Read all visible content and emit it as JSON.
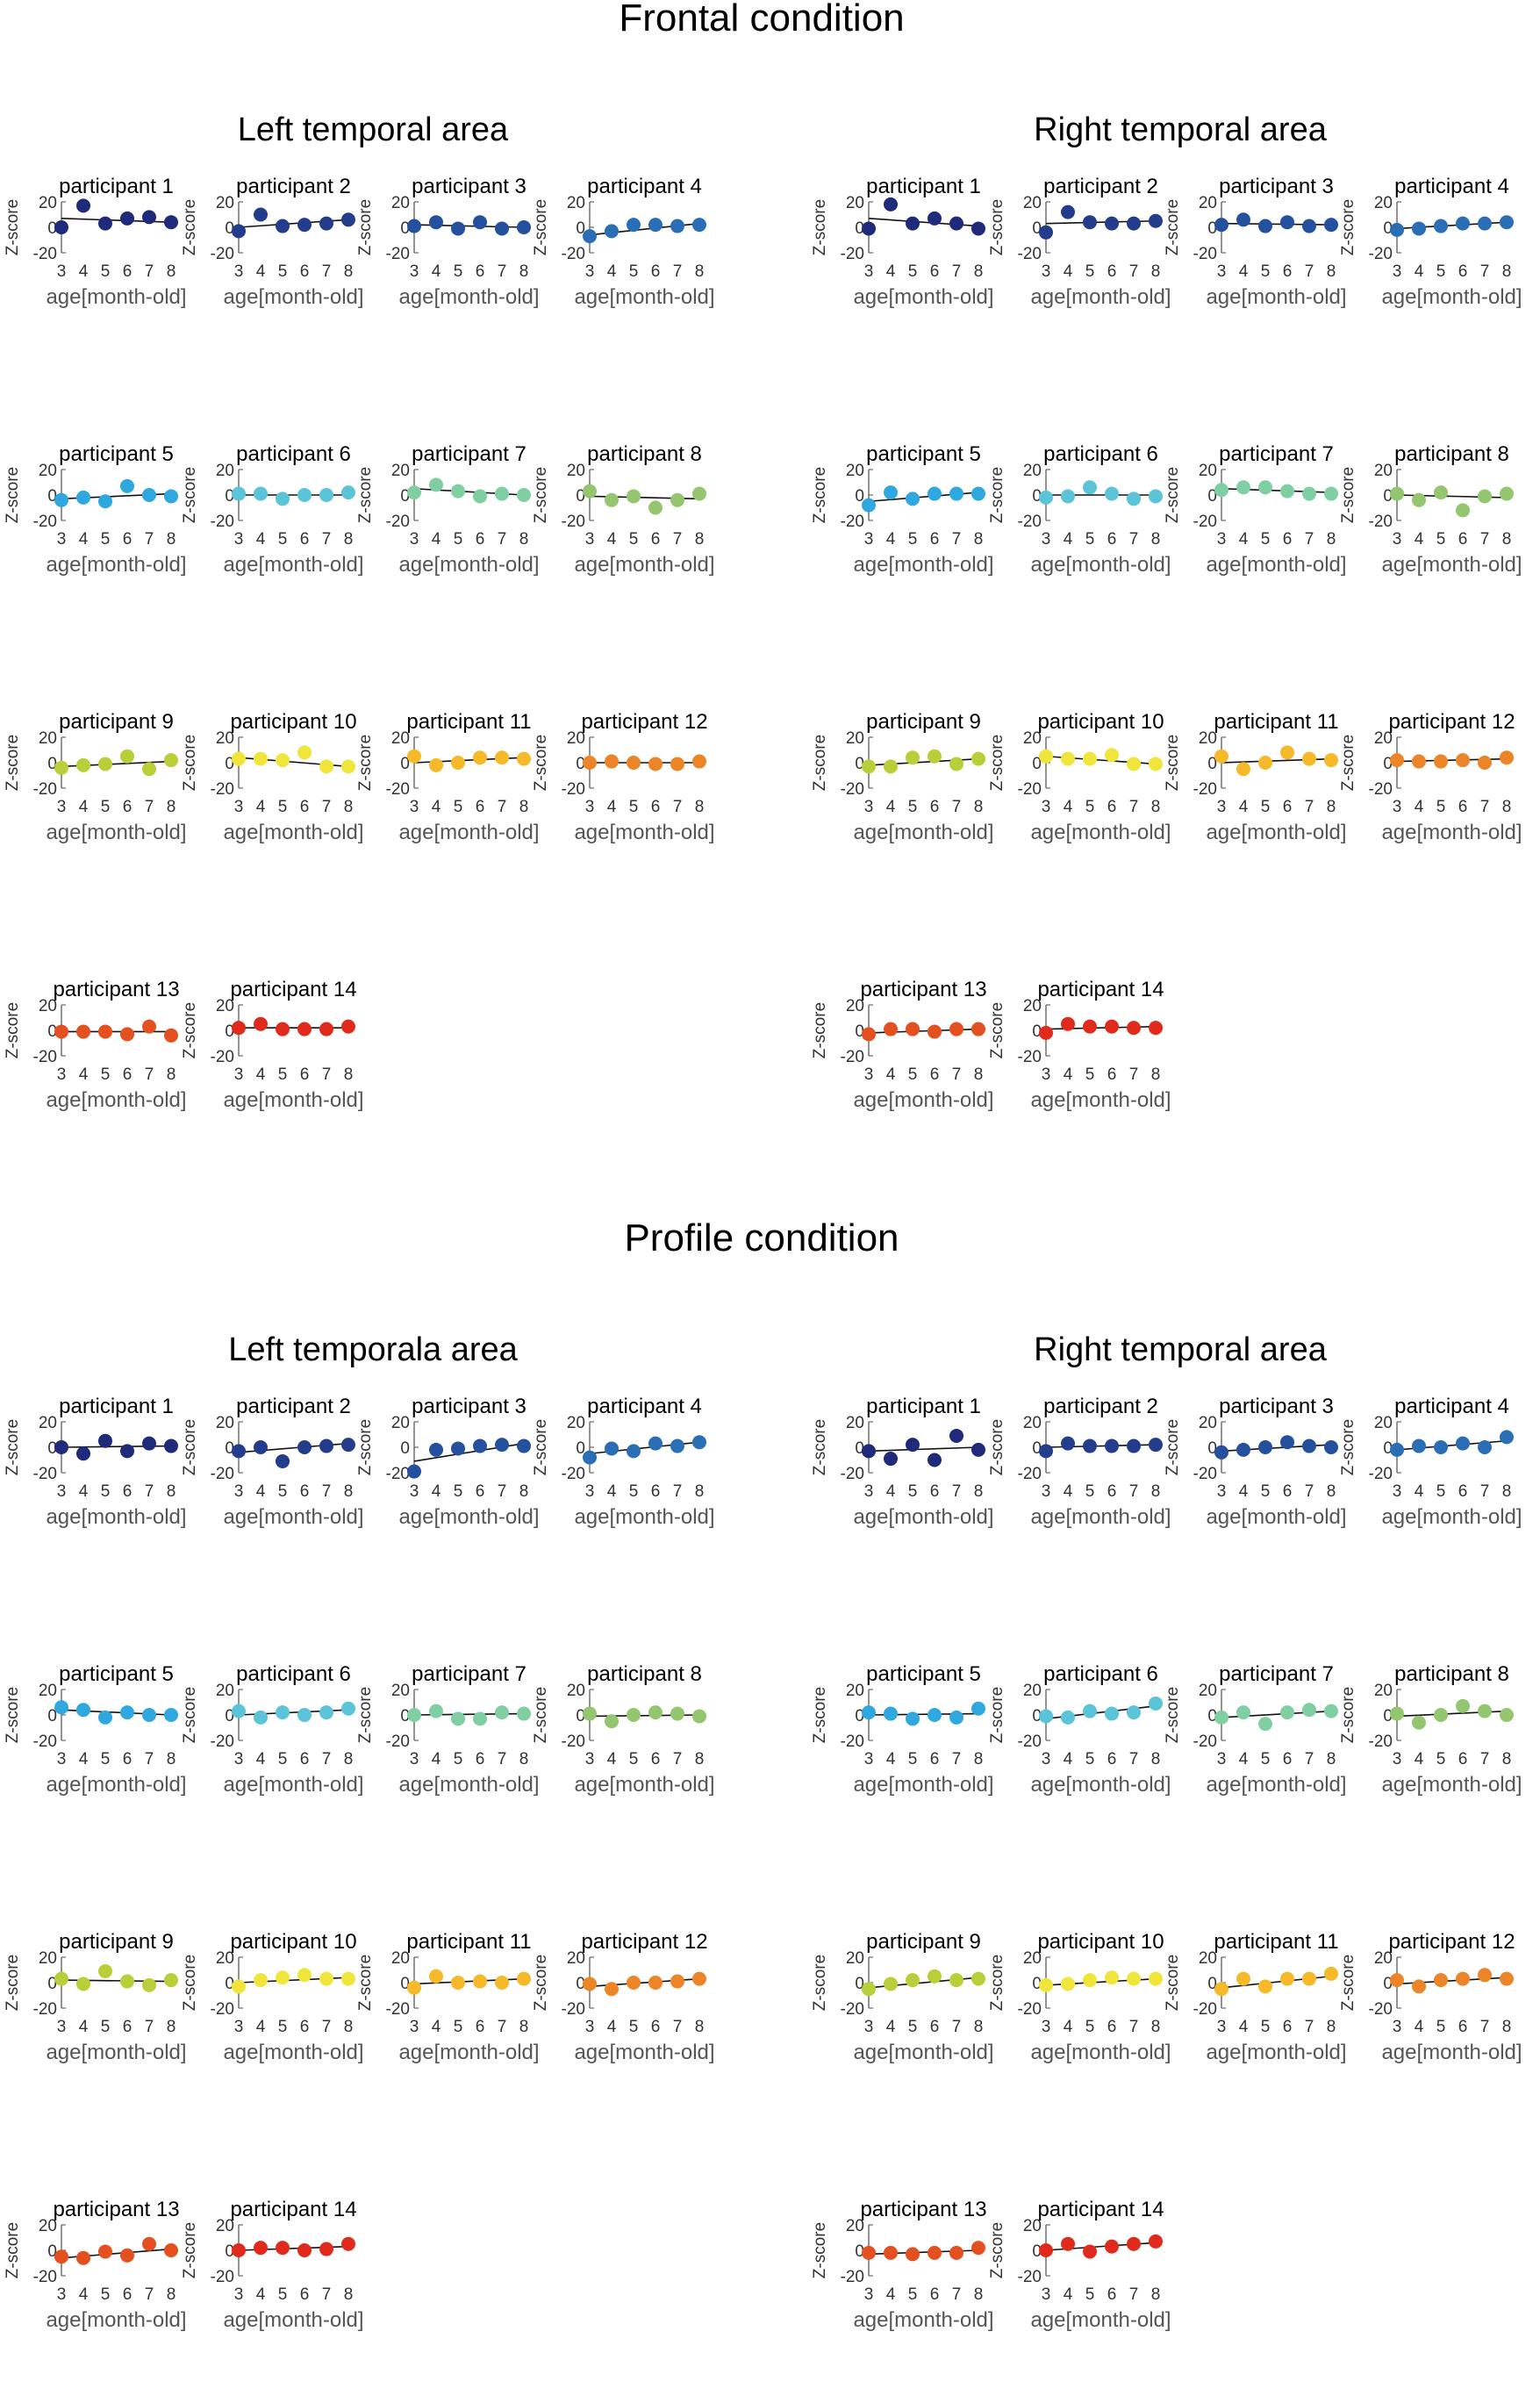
{
  "chart_data": {
    "type": "scatter",
    "x_ticks": [
      3,
      4,
      5,
      6,
      7,
      8
    ],
    "y_ticks": [
      -20,
      0,
      20
    ],
    "ylim": [
      -20,
      20
    ],
    "xlim": [
      3,
      8
    ],
    "xlabel": "age[month-old]",
    "ylabel": "Z-score",
    "participant_colors": [
      "#1f2a7a",
      "#243c8c",
      "#25509d",
      "#2a6fb6",
      "#2fa8df",
      "#5bc4d8",
      "#7fcfa3",
      "#93c66e",
      "#b9cf3a",
      "#f0e53a",
      "#f5b92a",
      "#ec8428",
      "#e4501f",
      "#e02b1c"
    ],
    "conditions": [
      {
        "title": "Frontal condition",
        "areas": [
          {
            "title": "Left temporal area",
            "participants": [
              {
                "label": "participant 1",
                "y": [
                  0,
                  17,
                  3,
                  7,
                  8,
                  4
                ],
                "fit": [
                  7,
                  4
                ]
              },
              {
                "label": "participant 2",
                "y": [
                  -3,
                  10,
                  1,
                  2,
                  3,
                  6
                ],
                "fit": [
                  0,
                  6
                ]
              },
              {
                "label": "participant 3",
                "y": [
                  1,
                  4,
                  -1,
                  4,
                  -1,
                  0
                ],
                "fit": [
                  2,
                  0
                ]
              },
              {
                "label": "participant 4",
                "y": [
                  -7,
                  -3,
                  2,
                  2,
                  1,
                  2
                ],
                "fit": [
                  -6,
                  3
                ]
              },
              {
                "label": "participant 5",
                "y": [
                  -4,
                  -2,
                  -5,
                  7,
                  0,
                  -1
                ],
                "fit": [
                  -3,
                  1
                ]
              },
              {
                "label": "participant 6",
                "y": [
                  1,
                  1,
                  -3,
                  0,
                  0,
                  2
                ],
                "fit": [
                  0,
                  0
                ]
              },
              {
                "label": "participant 7",
                "y": [
                  2,
                  8,
                  3,
                  -1,
                  1,
                  0
                ],
                "fit": [
                  5,
                  0
                ]
              },
              {
                "label": "participant 8",
                "y": [
                  3,
                  -4,
                  -1,
                  -10,
                  -4,
                  1
                ],
                "fit": [
                  -1,
                  -3
                ]
              },
              {
                "label": "participant 9",
                "y": [
                  -4,
                  -2,
                  -1,
                  5,
                  -5,
                  2
                ],
                "fit": [
                  -3,
                  1
                ]
              },
              {
                "label": "participant 10",
                "y": [
                  3,
                  3,
                  2,
                  8,
                  -3,
                  -3
                ],
                "fit": [
                  4,
                  -3
                ]
              },
              {
                "label": "participant 11",
                "y": [
                  5,
                  -2,
                  0,
                  4,
                  4,
                  3
                ],
                "fit": [
                  0,
                  4
                ]
              },
              {
                "label": "participant 12",
                "y": [
                  0,
                  1,
                  0,
                  -1,
                  -1,
                  1
                ],
                "fit": [
                  0,
                  0
                ]
              },
              {
                "label": "participant 13",
                "y": [
                  -1,
                  -1,
                  -1,
                  -3,
                  3,
                  -4
                ],
                "fit": [
                  -1,
                  -1
                ]
              },
              {
                "label": "participant 14",
                "y": [
                  2,
                  5,
                  1,
                  1,
                  1,
                  3
                ],
                "fit": [
                  2,
                  2
                ]
              }
            ]
          },
          {
            "title": "Right temporal area",
            "participants": [
              {
                "label": "participant 1",
                "y": [
                  -1,
                  18,
                  3,
                  7,
                  3,
                  -1
                ],
                "fit": [
                  7,
                  1
                ]
              },
              {
                "label": "participant 2",
                "y": [
                  -4,
                  12,
                  4,
                  3,
                  3,
                  5
                ],
                "fit": [
                  3,
                  5
                ]
              },
              {
                "label": "participant 3",
                "y": [
                  2,
                  6,
                  1,
                  4,
                  1,
                  2
                ],
                "fit": [
                  3,
                  2
                ]
              },
              {
                "label": "participant 4",
                "y": [
                  -2,
                  -1,
                  1,
                  3,
                  3,
                  4
                ],
                "fit": [
                  -1,
                  4
                ]
              },
              {
                "label": "participant 5",
                "y": [
                  -8,
                  2,
                  -3,
                  1,
                  1,
                  1
                ],
                "fit": [
                  -5,
                  2
                ]
              },
              {
                "label": "participant 6",
                "y": [
                  -2,
                  -1,
                  6,
                  1,
                  -3,
                  -1
                ],
                "fit": [
                  0,
                  0
                ]
              },
              {
                "label": "participant 7",
                "y": [
                  4,
                  6,
                  6,
                  3,
                  1,
                  1
                ],
                "fit": [
                  5,
                  2
                ]
              },
              {
                "label": "participant 8",
                "y": [
                  1,
                  -4,
                  2,
                  -12,
                  -1,
                  1
                ],
                "fit": [
                  0,
                  -2
                ]
              },
              {
                "label": "participant 9",
                "y": [
                  -3,
                  -3,
                  4,
                  5,
                  -1,
                  3
                ],
                "fit": [
                  -2,
                  3
                ]
              },
              {
                "label": "participant 10",
                "y": [
                  5,
                  3,
                  3,
                  6,
                  -1,
                  -1
                ],
                "fit": [
                  5,
                  -1
                ]
              },
              {
                "label": "participant 11",
                "y": [
                  5,
                  -5,
                  0,
                  8,
                  3,
                  2
                ],
                "fit": [
                  0,
                  3
                ]
              },
              {
                "label": "participant 12",
                "y": [
                  2,
                  1,
                  1,
                  2,
                  0,
                  4
                ],
                "fit": [
                  1,
                  3
                ]
              },
              {
                "label": "participant 13",
                "y": [
                  -3,
                  1,
                  1,
                  -1,
                  1,
                  1
                ],
                "fit": [
                  -2,
                  1
                ]
              },
              {
                "label": "participant 14",
                "y": [
                  -2,
                  5,
                  3,
                  3,
                  2,
                  2
                ],
                "fit": [
                  1,
                  3
                ]
              }
            ]
          }
        ]
      },
      {
        "title": "Profile condition",
        "areas": [
          {
            "title": "Left temporala area",
            "participants": [
              {
                "label": "participant 1",
                "y": [
                  0,
                  -5,
                  5,
                  -3,
                  3,
                  1
                ],
                "fit": [
                  0,
                  1
                ]
              },
              {
                "label": "participant 2",
                "y": [
                  -3,
                  0,
                  -11,
                  0,
                  1,
                  2
                ],
                "fit": [
                  -4,
                  3
                ]
              },
              {
                "label": "participant 3",
                "y": [
                  -19,
                  -2,
                  -1,
                  1,
                  2,
                  1
                ],
                "fit": [
                  -11,
                  3
                ]
              },
              {
                "label": "participant 4",
                "y": [
                  -8,
                  -1,
                  -3,
                  3,
                  1,
                  4
                ],
                "fit": [
                  -5,
                  4
                ]
              },
              {
                "label": "participant 5",
                "y": [
                  6,
                  4,
                  -2,
                  2,
                  0,
                  0
                ],
                "fit": [
                  4,
                  0
                ]
              },
              {
                "label": "participant 6",
                "y": [
                  3,
                  -2,
                  2,
                  0,
                  2,
                  5
                ],
                "fit": [
                  0,
                  4
                ]
              },
              {
                "label": "participant 7",
                "y": [
                  0,
                  3,
                  -3,
                  -3,
                  2,
                  1
                ],
                "fit": [
                  0,
                  1
                ]
              },
              {
                "label": "participant 8",
                "y": [
                  1,
                  -5,
                  0,
                  2,
                  1,
                  -1
                ],
                "fit": [
                  -1,
                  0
                ]
              },
              {
                "label": "participant 9",
                "y": [
                  3,
                  -1,
                  9,
                  1,
                  -2,
                  2
                ],
                "fit": [
                  2,
                  1
                ]
              },
              {
                "label": "participant 10",
                "y": [
                  -3,
                  2,
                  4,
                  6,
                  3,
                  3
                ],
                "fit": [
                  0,
                  4
                ]
              },
              {
                "label": "participant 11",
                "y": [
                  -4,
                  5,
                  0,
                  1,
                  0,
                  3
                ],
                "fit": [
                  -1,
                  3
                ]
              },
              {
                "label": "participant 12",
                "y": [
                  -1,
                  -5,
                  0,
                  0,
                  1,
                  3
                ],
                "fit": [
                  -3,
                  3
                ]
              },
              {
                "label": "participant 13",
                "y": [
                  -5,
                  -6,
                  -1,
                  -4,
                  5,
                  0
                ],
                "fit": [
                  -6,
                  1
                ]
              },
              {
                "label": "participant 14",
                "y": [
                  0,
                  2,
                  2,
                  0,
                  1,
                  5
                ],
                "fit": [
                  0,
                  3
                ]
              }
            ]
          },
          {
            "title": "Right temporal area",
            "participants": [
              {
                "label": "participant 1",
                "y": [
                  -3,
                  -9,
                  2,
                  -10,
                  9,
                  -2
                ],
                "fit": [
                  -3,
                  0
                ]
              },
              {
                "label": "participant 2",
                "y": [
                  -3,
                  3,
                  1,
                  1,
                  1,
                  2
                ],
                "fit": [
                  0,
                  2
                ]
              },
              {
                "label": "participant 3",
                "y": [
                  -4,
                  -2,
                  0,
                  4,
                  1,
                  0
                ],
                "fit": [
                  -3,
                  2
                ]
              },
              {
                "label": "participant 4",
                "y": [
                  -2,
                  1,
                  0,
                  3,
                  0,
                  8
                ],
                "fit": [
                  -2,
                  5
                ]
              },
              {
                "label": "participant 5",
                "y": [
                  2,
                  1,
                  -3,
                  0,
                  -2,
                  5
                ],
                "fit": [
                  0,
                  1
                ]
              },
              {
                "label": "participant 6",
                "y": [
                  -1,
                  -2,
                  3,
                  1,
                  2,
                  9
                ],
                "fit": [
                  -3,
                  7
                ]
              },
              {
                "label": "participant 7",
                "y": [
                  -2,
                  2,
                  -7,
                  2,
                  4,
                  3
                ],
                "fit": [
                  -2,
                  3
                ]
              },
              {
                "label": "participant 8",
                "y": [
                  1,
                  -6,
                  0,
                  7,
                  3,
                  0
                ],
                "fit": [
                  -1,
                  3
                ]
              },
              {
                "label": "participant 9",
                "y": [
                  -5,
                  -1,
                  2,
                  5,
                  2,
                  3
                ],
                "fit": [
                  -4,
                  4
                ]
              },
              {
                "label": "participant 10",
                "y": [
                  -2,
                  -1,
                  2,
                  4,
                  3,
                  3
                ],
                "fit": [
                  -2,
                  3
                ]
              },
              {
                "label": "participant 11",
                "y": [
                  -5,
                  3,
                  -3,
                  3,
                  3,
                  7
                ],
                "fit": [
                  -4,
                  5
                ]
              },
              {
                "label": "participant 12",
                "y": [
                  2,
                  -3,
                  2,
                  3,
                  6,
                  3
                ],
                "fit": [
                  -1,
                  4
                ]
              },
              {
                "label": "participant 13",
                "y": [
                  -2,
                  -2,
                  -3,
                  -2,
                  -2,
                  2
                ],
                "fit": [
                  -3,
                  0
                ]
              },
              {
                "label": "participant 14",
                "y": [
                  0,
                  5,
                  -1,
                  3,
                  5,
                  7
                ],
                "fit": [
                  0,
                  6
                ]
              }
            ]
          }
        ]
      }
    ]
  }
}
